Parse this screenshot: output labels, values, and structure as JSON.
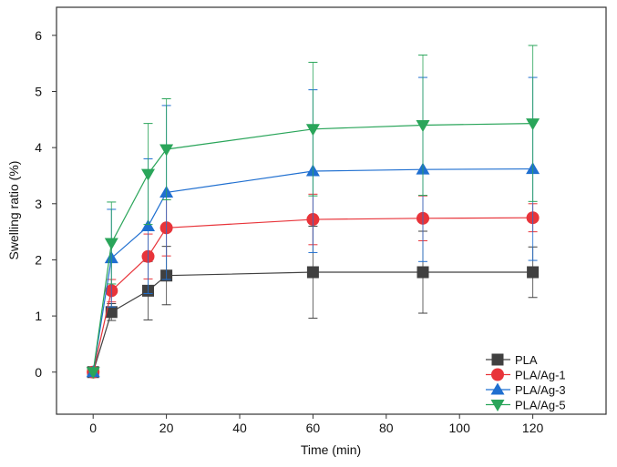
{
  "chart_data": {
    "type": "line",
    "title": "",
    "xlabel": "Time (min)",
    "ylabel": "Swelling ratio (%)",
    "xlim": [
      -10,
      140
    ],
    "ylim": [
      -0.75,
      6.5
    ],
    "xticks": [
      0,
      20,
      40,
      60,
      80,
      100,
      120
    ],
    "yticks": [
      0,
      1,
      2,
      3,
      4,
      5,
      6
    ],
    "grid": false,
    "legend_position": "bottom-right",
    "x": [
      0,
      5,
      15,
      20,
      60,
      90,
      120
    ],
    "series": [
      {
        "name": "PLA",
        "marker": "square",
        "color": "#404040",
        "values": [
          0,
          1.07,
          1.45,
          1.72,
          1.78,
          1.78,
          1.78
        ],
        "error": [
          0,
          0.15,
          0.52,
          0.52,
          0.82,
          0.73,
          0.45
        ]
      },
      {
        "name": "PLA/Ag-1",
        "marker": "circle",
        "color": "#e8343a",
        "values": [
          0,
          1.45,
          2.06,
          2.57,
          2.72,
          2.74,
          2.75
        ],
        "error": [
          0,
          0.2,
          0.4,
          0.5,
          0.45,
          0.4,
          0.25
        ]
      },
      {
        "name": "PLA/Ag-3",
        "marker": "triangle-up",
        "color": "#1f6fd0",
        "values": [
          0,
          2.03,
          2.6,
          3.2,
          3.58,
          3.61,
          3.62
        ],
        "error": [
          0,
          0.87,
          1.2,
          1.55,
          1.45,
          1.64,
          1.63
        ]
      },
      {
        "name": "PLA/Ag-5",
        "marker": "triangle-down",
        "color": "#2aa55a",
        "values": [
          0,
          2.3,
          3.53,
          3.97,
          4.33,
          4.4,
          4.43
        ],
        "error": [
          0,
          0.73,
          0.9,
          0.9,
          1.19,
          1.25,
          1.39
        ]
      }
    ]
  }
}
